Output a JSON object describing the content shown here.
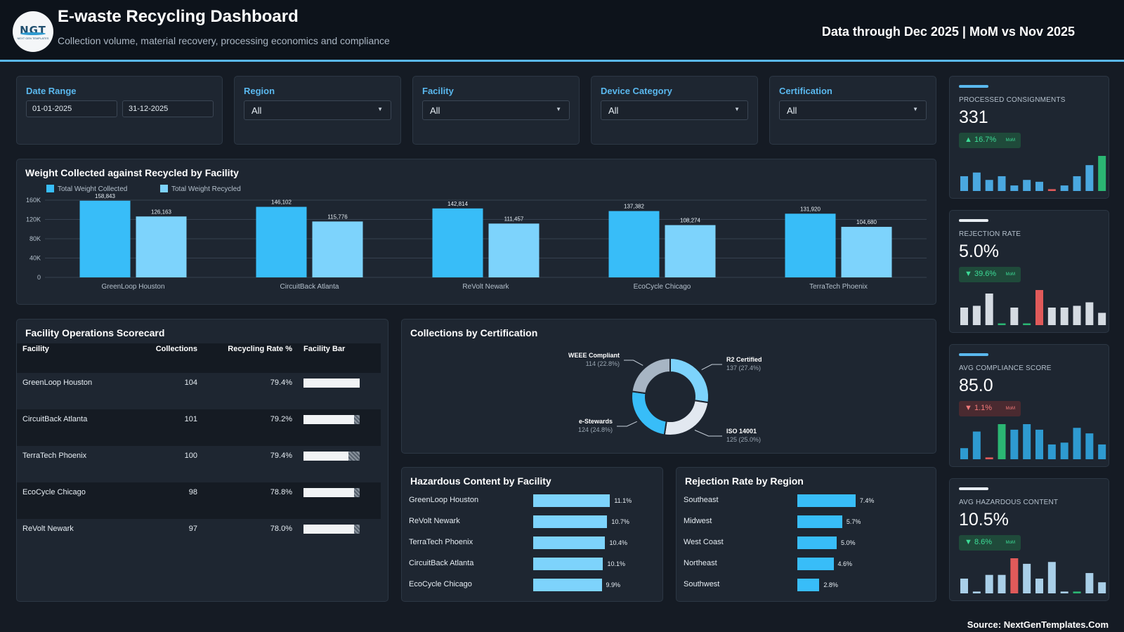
{
  "header": {
    "logo_text": "NGT",
    "logo_subtext": "NEXT GEN TEMPLATES",
    "title": "E-waste Recycling Dashboard",
    "subtitle": "Collection volume, material recovery, processing economics and compliance",
    "as_of": "Data through Dec 2025 | MoM vs Nov 2025"
  },
  "filters": {
    "date_range": {
      "label": "Date Range",
      "start": "01-01-2025",
      "end": "31-12-2025"
    },
    "region": {
      "label": "Region",
      "value": "All"
    },
    "facility": {
      "label": "Facility",
      "value": "All"
    },
    "device_category": {
      "label": "Device Category",
      "value": "All"
    },
    "certification": {
      "label": "Certification",
      "value": "All"
    }
  },
  "kpis": [
    {
      "label": "PROCESSED CONSIGNMENTS",
      "value": "331",
      "delta": "16.7%",
      "direction": "up",
      "tone": "good",
      "mom": "MoM",
      "accent": "#5ab8ee",
      "spark": [
        4,
        5,
        3,
        4,
        1.5,
        3,
        2.5,
        0.5,
        1.5,
        4,
        7,
        9.5
      ],
      "spark_colors": [
        "#4aa8e0",
        "#4aa8e0",
        "#4aa8e0",
        "#4aa8e0",
        "#4aa8e0",
        "#4aa8e0",
        "#4aa8e0",
        "#e05a5a",
        "#4aa8e0",
        "#4aa8e0",
        "#4aa8e0",
        "#2bb673"
      ]
    },
    {
      "label": "REJECTION RATE",
      "value": "5.0%",
      "delta": "39.6%",
      "direction": "down",
      "tone": "good",
      "mom": "MoM",
      "accent": "#e8edf2",
      "spark": [
        5,
        5.5,
        9,
        0.5,
        5,
        0.5,
        10,
        5,
        5,
        5.5,
        6.5,
        3.5
      ],
      "spark_colors": [
        "#d5dbe2",
        "#d5dbe2",
        "#d5dbe2",
        "#2bb673",
        "#d5dbe2",
        "#2bb673",
        "#e05a5a",
        "#d5dbe2",
        "#d5dbe2",
        "#d5dbe2",
        "#d5dbe2",
        "#d5dbe2"
      ]
    },
    {
      "label": "AVG COMPLIANCE SCORE",
      "value": "85.0",
      "delta": "1.1%",
      "direction": "down",
      "tone": "bad",
      "mom": "MoM",
      "accent": "#5ab8ee",
      "spark": [
        3,
        7.5,
        0.5,
        9.5,
        8,
        9.5,
        8,
        4,
        4.5,
        8.5,
        7,
        4
      ],
      "spark_colors": [
        "#2e9ad0",
        "#2e9ad0",
        "#e05a5a",
        "#2bb673",
        "#2e9ad0",
        "#2e9ad0",
        "#2e9ad0",
        "#2e9ad0",
        "#2e9ad0",
        "#2e9ad0",
        "#2e9ad0",
        "#2e9ad0"
      ]
    },
    {
      "label": "AVG HAZARDOUS CONTENT",
      "value": "10.5%",
      "delta": "8.6%",
      "direction": "down",
      "tone": "good",
      "mom": "MoM",
      "accent": "#e8edf2",
      "spark": [
        4,
        0.5,
        5,
        5,
        9.5,
        8,
        4,
        8.5,
        0.5,
        0.5,
        5.5,
        3
      ],
      "spark_colors": [
        "#a9cfe8",
        "#a9cfe8",
        "#a9cfe8",
        "#a9cfe8",
        "#e05a5a",
        "#a9cfe8",
        "#a9cfe8",
        "#a9cfe8",
        "#a9cfe8",
        "#2bb673",
        "#a9cfe8",
        "#a9cfe8"
      ]
    }
  ],
  "chart_data": [
    {
      "type": "bar",
      "title": "Weight Collected against Recycled by Facility",
      "categories": [
        "GreenLoop Houston",
        "CircuitBack Atlanta",
        "ReVolt Newark",
        "EcoCycle Chicago",
        "TerraTech Phoenix"
      ],
      "series": [
        {
          "name": "Total Weight Collected",
          "values": [
            158843,
            146102,
            142814,
            137382,
            131920
          ],
          "color": "#38bdf8"
        },
        {
          "name": "Total Weight Recycled",
          "values": [
            126163,
            115776,
            111457,
            108274,
            104680
          ],
          "color": "#7dd3fc"
        }
      ],
      "data_labels": [
        [
          "158,843",
          "146,102",
          "142,814",
          "137,382",
          "131,920"
        ],
        [
          "126,163",
          "115,776",
          "111,457",
          "108,274",
          "104,680"
        ]
      ],
      "y_ticks": [
        0,
        40000,
        80000,
        120000,
        160000
      ],
      "y_tick_labels": [
        "0",
        "40K",
        "80K",
        "120K",
        "160K"
      ],
      "ylim": [
        0,
        160000
      ],
      "legend": "top-left",
      "grid": true
    },
    {
      "type": "pie",
      "title": "Collections by Certification",
      "slices": [
        {
          "label": "R2 Certified",
          "value": 137,
          "pct": "137 (27.4%)",
          "color": "#7dd3fc"
        },
        {
          "label": "ISO 14001",
          "value": 125,
          "pct": "125 (25.0%)",
          "color": "#e2e8f0"
        },
        {
          "label": "e-Stewards",
          "value": 124,
          "pct": "124 (24.8%)",
          "color": "#38bdf8"
        },
        {
          "label": "WEEE Compliant",
          "value": 114,
          "pct": "114 (22.8%)",
          "color": "#a7b5c4"
        }
      ]
    },
    {
      "type": "bar",
      "orientation": "horizontal",
      "title": "Hazardous Content by Facility",
      "categories": [
        "GreenLoop Houston",
        "ReVolt Newark",
        "TerraTech Phoenix",
        "CircuitBack Atlanta",
        "EcoCycle Chicago"
      ],
      "values": [
        11.1,
        10.7,
        10.4,
        10.1,
        9.9
      ],
      "value_labels": [
        "11.1%",
        "10.7%",
        "10.4%",
        "10.1%",
        "9.9%"
      ],
      "color": "#7dd3fc",
      "xlim": [
        0,
        20
      ]
    },
    {
      "type": "bar",
      "orientation": "horizontal",
      "title": "Rejection Rate by Region",
      "categories": [
        "Southeast",
        "Midwest",
        "West Coast",
        "Northeast",
        "Southwest"
      ],
      "values": [
        7.4,
        5.7,
        5.0,
        4.6,
        2.8
      ],
      "value_labels": [
        "7.4%",
        "5.7%",
        "5.0%",
        "4.6%",
        "2.8%"
      ],
      "color": "#38bdf8",
      "xlim": [
        0,
        15
      ]
    }
  ],
  "scorecard": {
    "title": "Facility Operations Scorecard",
    "columns": [
      "Facility",
      "Collections",
      "Recycling Rate %",
      "Facility Bar"
    ],
    "rows": [
      {
        "facility": "GreenLoop Houston",
        "collections": "104",
        "rate": "79.4%",
        "bar": 1.0
      },
      {
        "facility": "CircuitBack Atlanta",
        "collections": "101",
        "rate": "79.2%",
        "bar": 0.9
      },
      {
        "facility": "TerraTech Phoenix",
        "collections": "100",
        "rate": "79.4%",
        "bar": 0.8
      },
      {
        "facility": "EcoCycle Chicago",
        "collections": "98",
        "rate": "78.8%",
        "bar": 0.9
      },
      {
        "facility": "ReVolt Newark",
        "collections": "97",
        "rate": "78.0%",
        "bar": 0.9
      }
    ]
  },
  "footer": {
    "source": "Source: NextGenTemplates.Com"
  }
}
